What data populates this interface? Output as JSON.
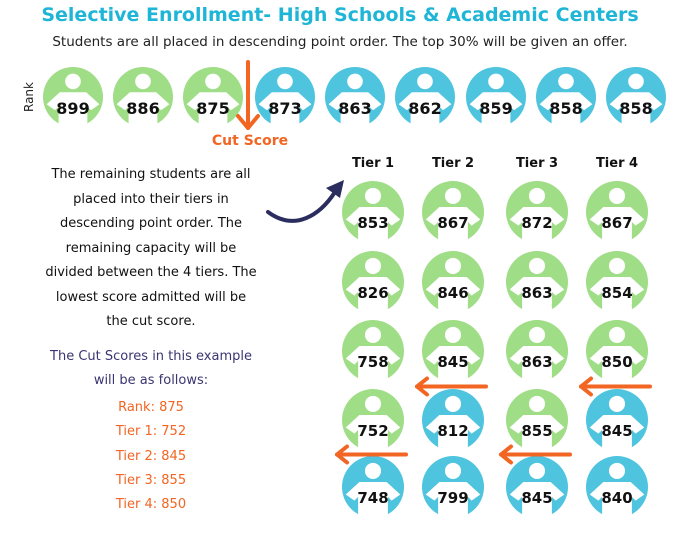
{
  "title": "Selective Enrollment- High Schools & Academic Centers",
  "subtitle": "Students are all placed in descending point order. The top 30% will be given an offer.",
  "rank_row": {
    "label": "Rank",
    "students": [
      {
        "score": "899",
        "status": "offer"
      },
      {
        "score": "886",
        "status": "offer"
      },
      {
        "score": "875",
        "status": "offer"
      },
      {
        "score": "873",
        "status": "remaining"
      },
      {
        "score": "863",
        "status": "remaining"
      },
      {
        "score": "862",
        "status": "remaining"
      },
      {
        "score": "859",
        "status": "remaining"
      },
      {
        "score": "858",
        "status": "remaining"
      },
      {
        "score": "858",
        "status": "remaining"
      }
    ],
    "cut_label": "Cut Score"
  },
  "explanation": [
    "The remaining students are all",
    "placed into their tiers in",
    "descending point order. The",
    "remaining capacity will be",
    "divided between the 4 tiers. The",
    "lowest score admitted will be",
    "the cut score."
  ],
  "example_heading": [
    "The Cut Scores in this example",
    "will be as follows:"
  ],
  "cut_scores": [
    "Rank: 875",
    "Tier 1: 752",
    "Tier 2: 845",
    "Tier 3: 855",
    "Tier 4: 850"
  ],
  "tiers": [
    {
      "name": "Tier 1",
      "scores": [
        "853",
        "826",
        "758",
        "752",
        "748"
      ],
      "admitted": 4
    },
    {
      "name": "Tier 2",
      "scores": [
        "867",
        "846",
        "845",
        "812",
        "799"
      ],
      "admitted": 3
    },
    {
      "name": "Tier 3",
      "scores": [
        "872",
        "863",
        "863",
        "855",
        "845"
      ],
      "admitted": 4
    },
    {
      "name": "Tier 4",
      "scores": [
        "867",
        "854",
        "850",
        "845",
        "840"
      ],
      "admitted": 3
    }
  ],
  "colors": {
    "offer": "#9fdd86",
    "remaining": "#4ec4de",
    "accent": "#f26522",
    "title": "#1fb5d6",
    "navy": "#2c2d5f"
  },
  "icons": {
    "student": "person-icon",
    "cut": "arrow-icon",
    "flow": "curved-arrow-icon"
  }
}
